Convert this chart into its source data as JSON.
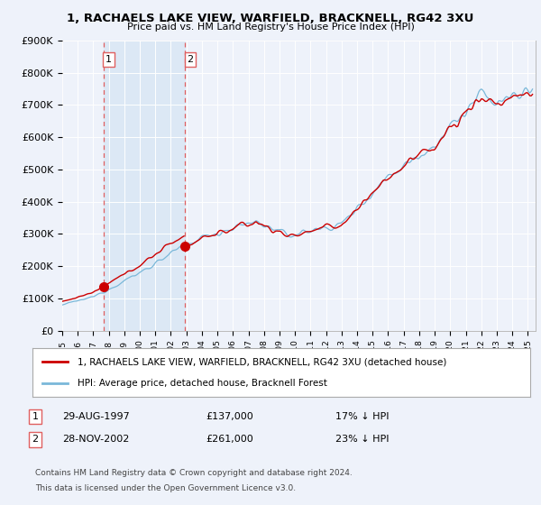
{
  "title": "1, RACHAELS LAKE VIEW, WARFIELD, BRACKNELL, RG42 3XU",
  "subtitle": "Price paid vs. HM Land Registry's House Price Index (HPI)",
  "ylabel_ticks": [
    "£0",
    "£100K",
    "£200K",
    "£300K",
    "£400K",
    "£500K",
    "£600K",
    "£700K",
    "£800K",
    "£900K"
  ],
  "ylim": [
    0,
    900000
  ],
  "xlim_start": 1995.0,
  "xlim_end": 2025.5,
  "transaction1": {
    "date_label": "29-AUG-1997",
    "year": 1997.65,
    "price": 137000,
    "pct": "17%",
    "label": "1"
  },
  "transaction2": {
    "date_label": "28-NOV-2002",
    "year": 2002.9,
    "price": 261000,
    "pct": "23%",
    "label": "2"
  },
  "hpi_color": "#7ab8d9",
  "price_color": "#cc0000",
  "dashed_color": "#e06060",
  "background_color": "#eef2fa",
  "grid_color": "#ffffff",
  "shade_color": "#dce8f5",
  "legend1_text": "1, RACHAELS LAKE VIEW, WARFIELD, BRACKNELL, RG42 3XU (detached house)",
  "legend2_text": "HPI: Average price, detached house, Bracknell Forest",
  "footer1": "Contains HM Land Registry data © Crown copyright and database right 2024.",
  "footer2": "This data is licensed under the Open Government Licence v3.0."
}
